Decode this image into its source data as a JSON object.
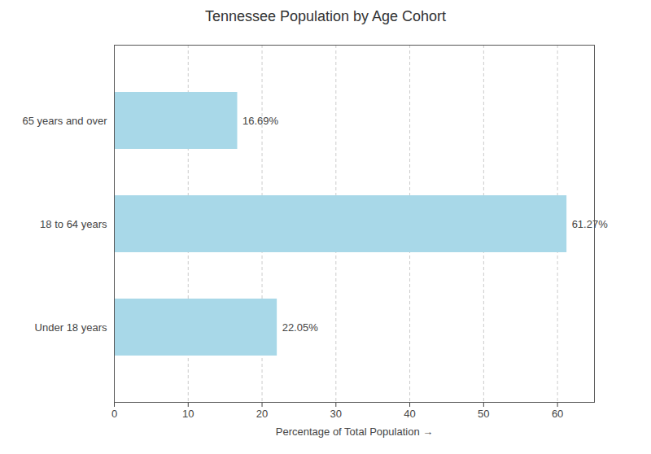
{
  "chart_data": {
    "type": "bar",
    "title": "Tennessee Population by Age Cohort",
    "orientation": "horizontal",
    "categories": [
      "Under 18 years",
      "18 to 64 years",
      "65 years and over"
    ],
    "values": [
      22.05,
      61.27,
      16.69
    ],
    "value_labels": [
      "22.05%",
      "61.27%",
      "16.69%"
    ],
    "data_labels": true,
    "color": "#a8d8e8",
    "xlabel": "Percentage of Total Population",
    "xlim": [
      0,
      65
    ],
    "xticks": [
      0,
      10,
      20,
      30,
      40,
      50,
      60
    ],
    "grid": true
  }
}
